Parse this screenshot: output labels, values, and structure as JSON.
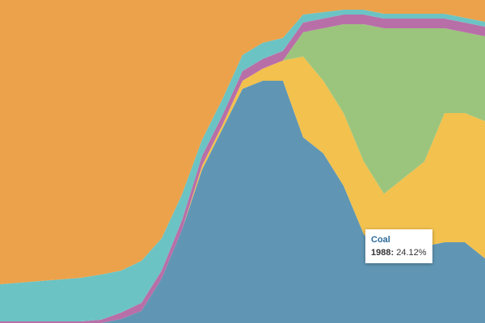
{
  "chart_data": {
    "type": "stacked-area-100",
    "ylim": [
      0,
      100
    ],
    "series": [
      {
        "name": "Coal",
        "color": "#6096b4",
        "values": [
          0,
          0,
          0,
          0,
          0,
          0,
          1.25,
          3.75,
          13.75,
          28.75,
          47.5,
          60,
          72.5,
          75,
          75,
          57.5,
          52.5,
          42.5,
          27.5,
          20,
          20,
          23.75,
          25,
          25,
          20
        ]
      },
      {
        "color": "#f2c14e",
        "values": [
          0,
          0,
          0,
          0,
          0,
          0,
          0,
          0,
          0,
          0,
          1.25,
          1.25,
          2.5,
          3.75,
          6.25,
          25,
          22.5,
          22.5,
          22.5,
          20,
          25,
          26.25,
          40,
          40,
          42.5
        ]
      },
      {
        "color": "#9bc57c",
        "values": [
          0,
          0,
          0,
          0,
          0,
          0,
          0,
          0,
          0,
          0,
          0,
          0,
          0,
          0,
          0,
          7.5,
          16.25,
          27.5,
          42.5,
          51.25,
          46.25,
          41.25,
          26.25,
          25,
          26.25
        ]
      },
      {
        "color": "#b86fa8",
        "values": [
          0.5,
          0.5,
          0.5,
          0.5,
          0.5,
          1,
          2,
          2.5,
          2.5,
          3,
          3,
          3,
          3,
          3,
          3,
          3,
          3,
          3,
          3,
          3,
          3,
          3,
          3,
          3,
          3
        ]
      },
      {
        "color": "#6cc3c3",
        "values": [
          11.5,
          12,
          12.5,
          13,
          13.5,
          14,
          13,
          13,
          10,
          8,
          5,
          5,
          5,
          5,
          4,
          2.5,
          2,
          1.5,
          1.5,
          1.5,
          1.5,
          1.5,
          1.5,
          1.5,
          1.5
        ]
      },
      {
        "color": "#eca24a",
        "values": [
          88,
          87.5,
          87,
          86.5,
          86,
          85,
          83.75,
          80.75,
          73.75,
          60.25,
          43.25,
          30.75,
          17,
          13.25,
          11.75,
          4.5,
          3.75,
          3,
          3,
          4.25,
          4.25,
          4.25,
          4.25,
          5.5,
          6.75
        ]
      }
    ],
    "tooltip": {
      "series": "Coal",
      "label": "1988:",
      "value_label": "24.12%"
    }
  }
}
